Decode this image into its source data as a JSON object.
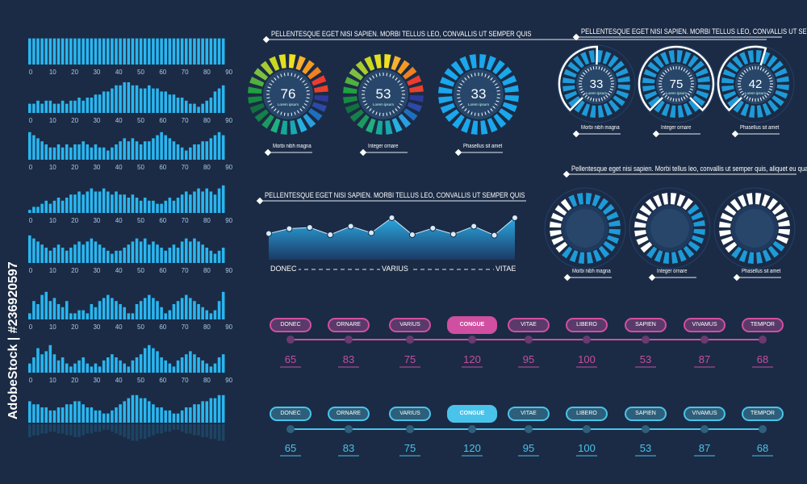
{
  "watermark": "AdobeStock | #236920597",
  "colors": {
    "background": "#1b2b45",
    "accent_blue": "#29b6f0",
    "pink": "#d14fa0",
    "pink_fill": "#5a3a6a",
    "cyan_fill": "#2d5f7a",
    "gauge_inner": "#27466a"
  },
  "headings": {
    "gauges_a": "PELLENTESQUE EGET NISI SAPIEN. MORBI TELLUS LEO, CONVALLIS UT SEMPER QUIS",
    "gauges_b": "PELLENTESQUE EGET NISI SAPIEN. MORBI TELLUS LEO, CONVALLIS UT SEMPER QUIS",
    "area": "PELLENTESQUE EGET NISI SAPIEN. MORBI TELLUS LEO, CONVALLIS UT SEMPER QUIS",
    "rings": "Pellentesque eget nisi sapien. Morbi tellus leo, convallis ut semper quis, aliquet eu quam."
  },
  "chart_data": [
    {
      "type": "bar",
      "name_hint": "bar-strips",
      "x_ticks": [
        0,
        10,
        20,
        30,
        40,
        50,
        60,
        70,
        80,
        90
      ],
      "series": [
        {
          "values": [
            9,
            9,
            9,
            9,
            9,
            9,
            9,
            9,
            9,
            9,
            9,
            9,
            9,
            9,
            9,
            9,
            9,
            9,
            9,
            9,
            9,
            9,
            9,
            9,
            9,
            9,
            9,
            9,
            9,
            9,
            9,
            9,
            9,
            9,
            9,
            9,
            9,
            9,
            9,
            9,
            9,
            9,
            9,
            9,
            9,
            9,
            9,
            9
          ]
        },
        {
          "values": [
            3,
            3,
            4,
            3,
            4,
            4,
            3,
            3,
            4,
            3,
            4,
            4,
            5,
            4,
            5,
            5,
            6,
            6,
            7,
            7,
            8,
            9,
            9,
            10,
            10,
            9,
            9,
            8,
            8,
            9,
            8,
            8,
            7,
            7,
            6,
            6,
            5,
            5,
            4,
            3,
            3,
            2,
            3,
            4,
            5,
            7,
            8,
            9
          ]
        },
        {
          "values": [
            9,
            8,
            7,
            6,
            5,
            4,
            4,
            5,
            4,
            5,
            4,
            5,
            5,
            6,
            5,
            4,
            5,
            4,
            4,
            3,
            4,
            5,
            6,
            7,
            6,
            7,
            6,
            5,
            6,
            6,
            7,
            8,
            9,
            8,
            7,
            6,
            5,
            4,
            3,
            4,
            5,
            5,
            6,
            6,
            7,
            8,
            9,
            8
          ]
        },
        {
          "values": [
            1,
            2,
            2,
            3,
            4,
            3,
            4,
            5,
            4,
            5,
            6,
            6,
            7,
            6,
            7,
            8,
            7,
            7,
            8,
            7,
            6,
            7,
            6,
            6,
            5,
            6,
            5,
            4,
            5,
            4,
            4,
            3,
            3,
            4,
            5,
            4,
            5,
            6,
            7,
            6,
            7,
            8,
            7,
            8,
            7,
            6,
            8,
            9
          ]
        },
        {
          "values": [
            9,
            8,
            7,
            6,
            5,
            4,
            5,
            6,
            5,
            4,
            5,
            6,
            7,
            6,
            7,
            8,
            7,
            6,
            5,
            4,
            3,
            4,
            4,
            5,
            6,
            7,
            8,
            7,
            8,
            6,
            7,
            6,
            5,
            4,
            5,
            6,
            5,
            7,
            8,
            7,
            8,
            7,
            6,
            5,
            4,
            3,
            4,
            5
          ]
        },
        {
          "values": [
            2,
            6,
            5,
            8,
            9,
            6,
            7,
            5,
            4,
            6,
            2,
            2,
            3,
            3,
            2,
            5,
            4,
            6,
            7,
            8,
            7,
            6,
            5,
            4,
            2,
            2,
            5,
            6,
            7,
            8,
            7,
            6,
            4,
            2,
            3,
            5,
            6,
            7,
            8,
            7,
            6,
            5,
            4,
            3,
            2,
            3,
            6,
            9
          ]
        },
        {
          "values": [
            3,
            5,
            8,
            6,
            7,
            9,
            6,
            4,
            5,
            3,
            2,
            3,
            4,
            5,
            3,
            2,
            3,
            2,
            4,
            5,
            6,
            5,
            4,
            3,
            2,
            4,
            5,
            6,
            8,
            9,
            8,
            7,
            5,
            4,
            3,
            2,
            4,
            5,
            6,
            7,
            6,
            5,
            4,
            3,
            2,
            3,
            5,
            6
          ]
        },
        {
          "values": [
            7,
            6,
            6,
            5,
            5,
            4,
            4,
            5,
            5,
            6,
            6,
            7,
            7,
            6,
            5,
            5,
            4,
            4,
            3,
            3,
            4,
            5,
            6,
            7,
            8,
            9,
            9,
            8,
            8,
            7,
            6,
            5,
            5,
            4,
            4,
            3,
            3,
            4,
            5,
            5,
            6,
            6,
            7,
            7,
            8,
            8,
            9,
            9
          ]
        }
      ]
    },
    {
      "type": "pie",
      "name_hint": "segment-gauges",
      "values": [
        76,
        53,
        33
      ],
      "center_label": "Lorem ipsum",
      "labels": [
        "Morbi nibh magna",
        "Integer ornare",
        "Phasellus sit amet"
      ]
    },
    {
      "type": "pie",
      "name_hint": "highlighted-gauges",
      "values": [
        33,
        75,
        42
      ],
      "center_label": "Lorem ipsum",
      "labels": [
        "Morbi nibh magna",
        "Integer ornare",
        "Phasellus sit amet"
      ]
    },
    {
      "type": "area",
      "name_hint": "area-line",
      "y": [
        35,
        55,
        60,
        30,
        65,
        38,
        100,
        30,
        57,
        32,
        65,
        28,
        100
      ],
      "x_labels": [
        "DONEC",
        "VARIUS",
        "VITAE"
      ],
      "ylim": [
        0,
        100
      ]
    },
    {
      "type": "pie",
      "name_hint": "rings",
      "values": [
        30,
        50,
        70
      ],
      "labels": [
        "Morbi nibh magna",
        "Integer ornare",
        "Phasellus sit amet"
      ]
    },
    {
      "type": "table",
      "name_hint": "timeline-pink",
      "categories": [
        "DONEC",
        "ORNARE",
        "VARIUS",
        "CONGUE",
        "VITAE",
        "LIBERO",
        "SAPIEN",
        "VIVAMUS",
        "TEMPOR"
      ],
      "values": [
        65,
        83,
        75,
        120,
        95,
        100,
        53,
        87,
        68
      ],
      "selected": "CONGUE"
    },
    {
      "type": "table",
      "name_hint": "timeline-cyan",
      "categories": [
        "DONEC",
        "ORNARE",
        "VARIUS",
        "CONGUE",
        "VITAE",
        "LIBERO",
        "SAPIEN",
        "VIVAMUS",
        "TEMPOR"
      ],
      "values": [
        65,
        83,
        75,
        120,
        95,
        100,
        53,
        87,
        68
      ],
      "selected": "CONGUE"
    }
  ]
}
